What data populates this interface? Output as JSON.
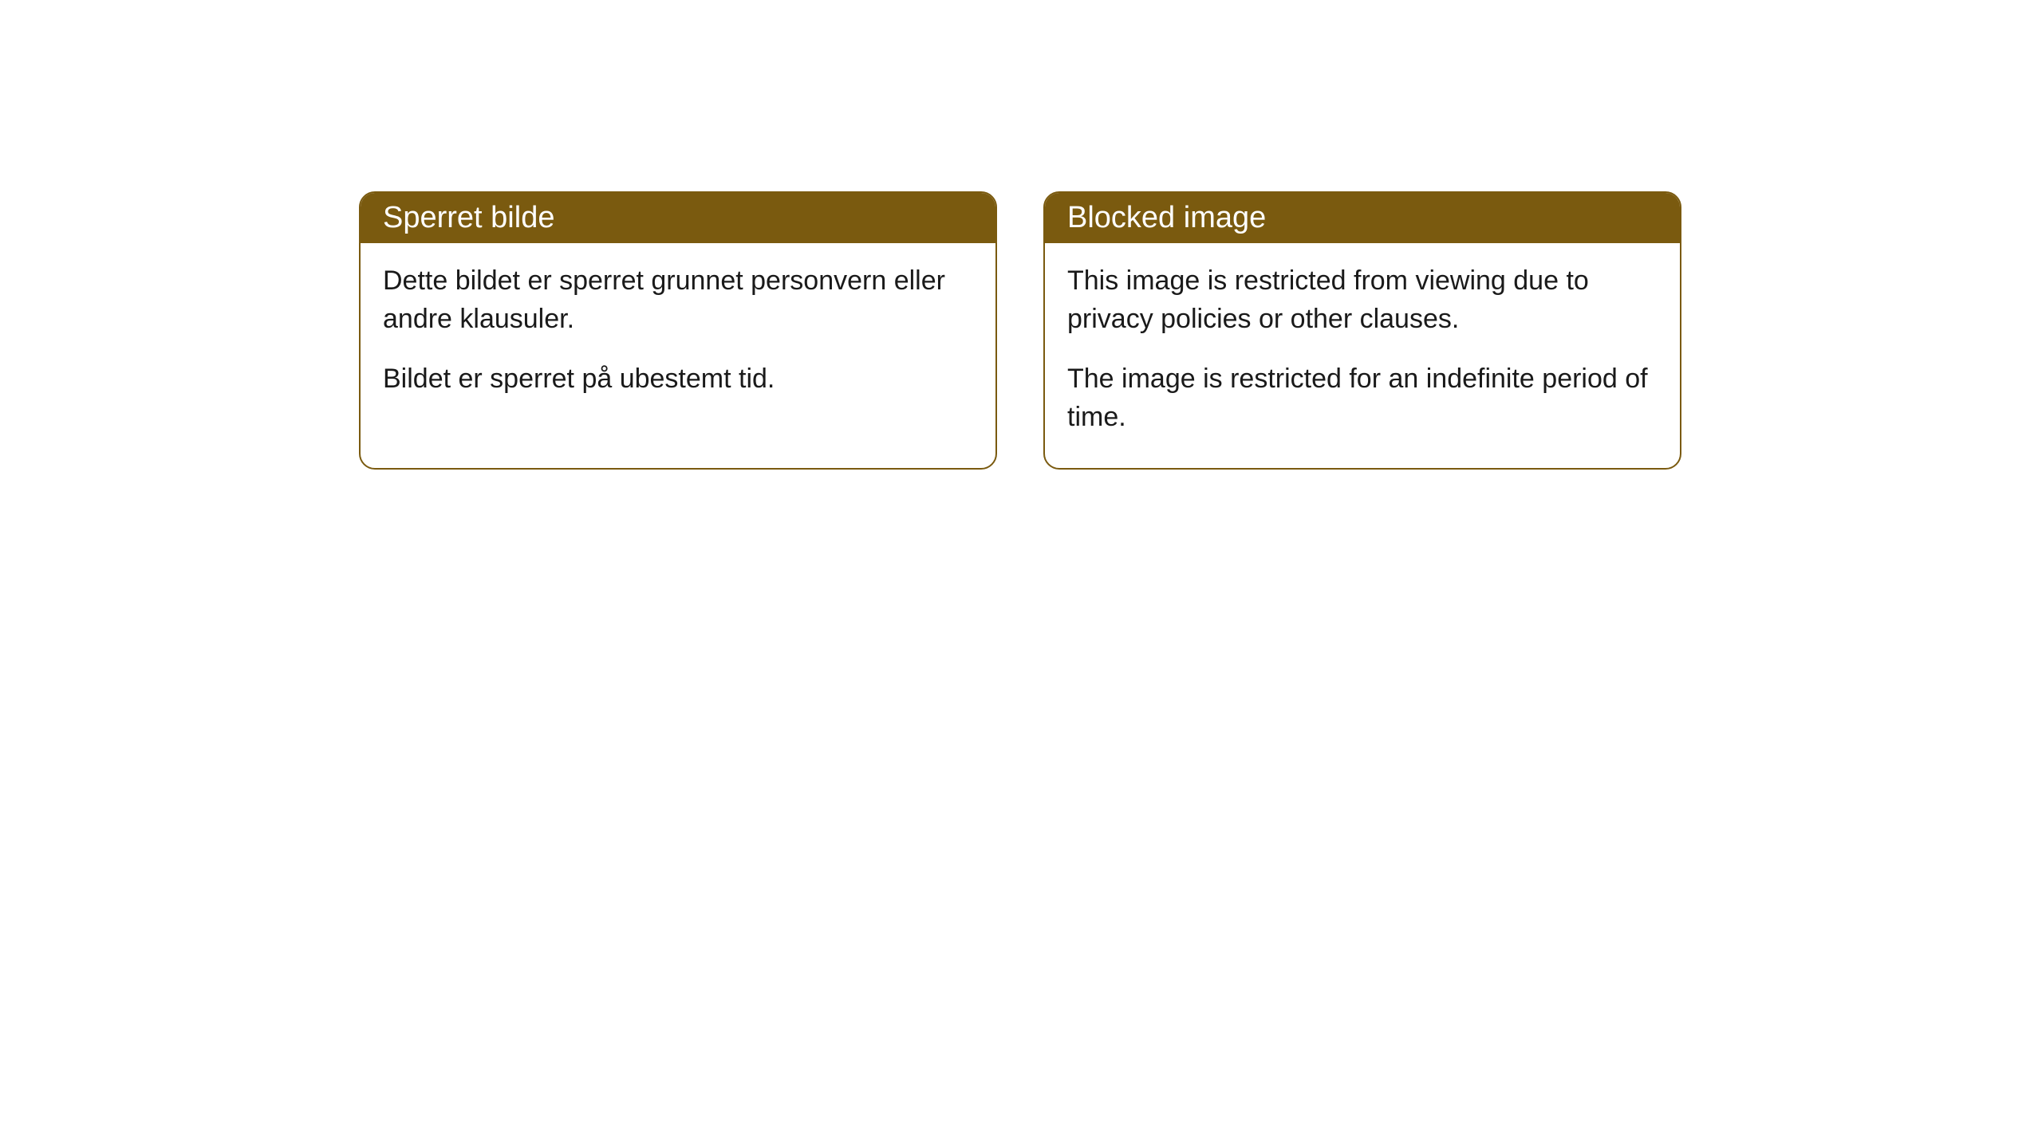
{
  "cards": [
    {
      "title": "Sperret bilde",
      "paragraph1": "Dette bildet er sperret grunnet personvern eller andre klausuler.",
      "paragraph2": "Bildet er sperret på ubestemt tid."
    },
    {
      "title": "Blocked image",
      "paragraph1": "This image is restricted from viewing due to privacy policies or other clauses.",
      "paragraph2": "The image is restricted for an indefinite period of time."
    }
  ],
  "style": {
    "header_bg_color": "#7a5a0f",
    "header_text_color": "#ffffff",
    "border_color": "#7a5a0f",
    "body_bg_color": "#ffffff",
    "body_text_color": "#1a1a1a",
    "border_radius": 20,
    "title_fontsize": 38,
    "body_fontsize": 34
  }
}
